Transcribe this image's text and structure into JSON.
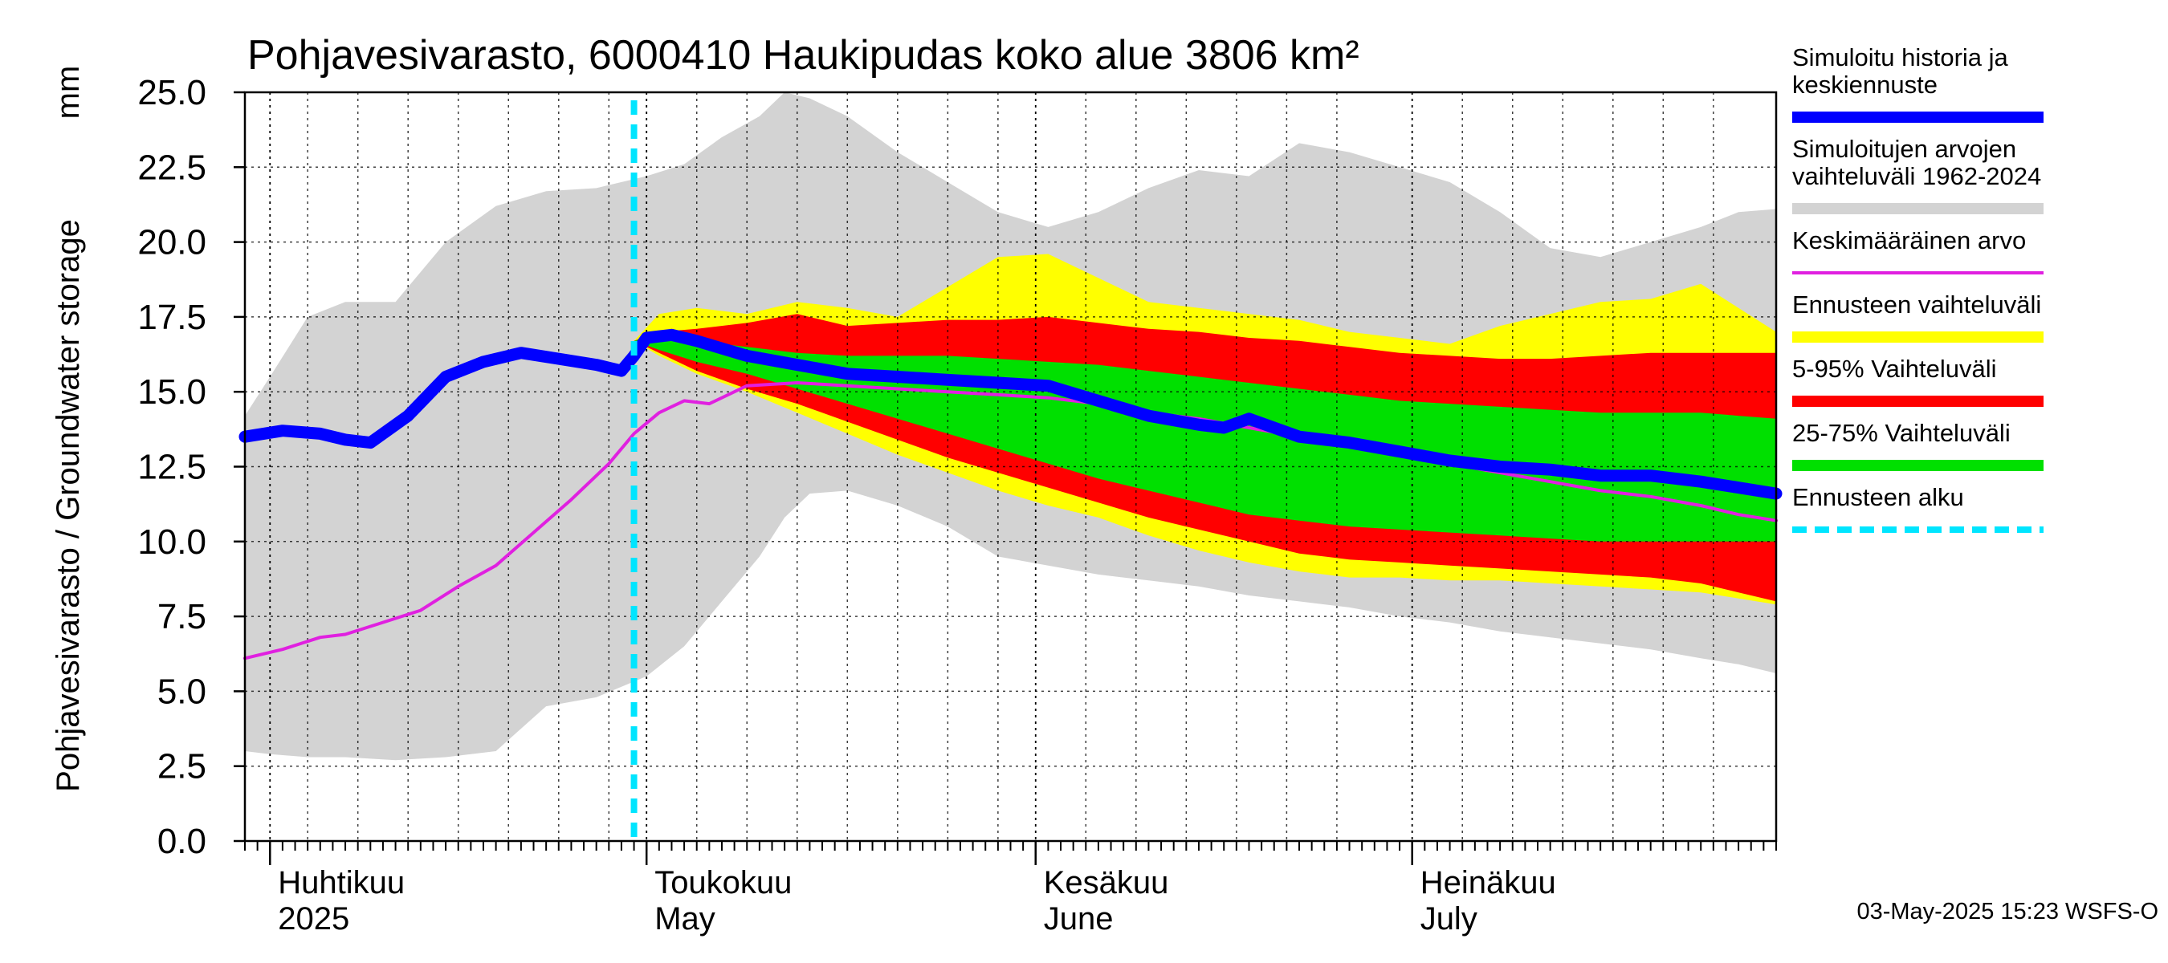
{
  "chart_data": {
    "type": "area",
    "title": "Pohjavesivarasto, 6000410 Haukipudas koko alue 3806 km²",
    "ylabel": "Pohjavesivarasto / Groundwater storage",
    "yunit": "mm",
    "ylim": [
      0,
      25
    ],
    "yticks": [
      "0.0",
      "2.5",
      "5.0",
      "7.5",
      "10.0",
      "12.5",
      "15.0",
      "17.5",
      "20.0",
      "22.5",
      "25.0"
    ],
    "xlim": [
      0,
      122
    ],
    "x_unit": "days since 2025-03-30",
    "month_labels": [
      {
        "fi": "Huhtikuu",
        "en": "2025",
        "day": 2
      },
      {
        "fi": "Toukokuu",
        "en": "May",
        "day": 32
      },
      {
        "fi": "Kesäkuu",
        "en": "June",
        "day": 63
      },
      {
        "fi": "Heinäkuu",
        "en": "July",
        "day": 93
      }
    ],
    "month_boundaries": [
      2,
      32,
      63,
      93
    ],
    "forecast_start_day": 31,
    "footer": "03-May-2025 15:23 WSFS-O",
    "legend": [
      {
        "label": "Simuloitu historia ja keskiennuste",
        "lines": [
          "Simuloitu historia ja",
          "keskiennuste"
        ],
        "color": "#0000ff"
      },
      {
        "label": "Simuloitujen arvojen vaihteluväli 1962-2024",
        "lines": [
          "Simuloitujen arvojen",
          "vaihteluväli 1962-2024"
        ],
        "color": "#d3d3d3"
      },
      {
        "label": "Keskimääräinen arvo",
        "lines": [
          "Keskimääräinen arvo"
        ],
        "color": "#e020e0"
      },
      {
        "label": "Ennusteen vaihteluväli",
        "lines": [
          "Ennusteen vaihteluväli"
        ],
        "color": "#ffff00"
      },
      {
        "label": "5-95% Vaihteluväli",
        "lines": [
          "5-95% Vaihteluväli"
        ],
        "color": "#ff0000"
      },
      {
        "label": "25-75% Vaihteluväli",
        "lines": [
          "25-75% Vaihteluväli"
        ],
        "color": "#00e000"
      },
      {
        "label": "Ennusteen alku",
        "lines": [
          "Ennusteen alku"
        ],
        "color": "#00e5ff"
      }
    ],
    "series": [
      {
        "name": "Simuloitujen arvojen vaihteluväli 1962-2024",
        "kind": "band",
        "color": "#d3d3d3",
        "x": [
          0,
          2,
          5,
          8,
          12,
          16,
          20,
          24,
          28,
          32,
          35,
          38,
          41,
          43,
          45,
          48,
          52,
          56,
          60,
          64,
          68,
          72,
          76,
          80,
          84,
          88,
          92,
          96,
          100,
          104,
          108,
          112,
          116,
          119,
          122
        ],
        "upper": [
          14.2,
          15.5,
          17.5,
          18.0,
          18.0,
          20.0,
          21.2,
          21.7,
          21.8,
          22.2,
          22.6,
          23.5,
          24.2,
          25.0,
          24.8,
          24.2,
          23.0,
          22.0,
          21.0,
          20.5,
          21.0,
          21.8,
          22.4,
          22.2,
          23.3,
          23.0,
          22.5,
          22.0,
          21.0,
          19.8,
          19.5,
          20.0,
          20.5,
          21.0,
          21.1
        ],
        "lower": [
          3.0,
          2.9,
          2.8,
          2.8,
          2.7,
          2.8,
          3.0,
          4.5,
          4.8,
          5.5,
          6.5,
          8.0,
          9.5,
          10.8,
          11.6,
          11.7,
          11.2,
          10.5,
          9.5,
          9.2,
          8.9,
          8.7,
          8.5,
          8.2,
          8.0,
          7.8,
          7.5,
          7.3,
          7.0,
          6.8,
          6.6,
          6.4,
          6.1,
          5.9,
          5.6
        ]
      },
      {
        "name": "Ennusteen vaihteluväli",
        "kind": "band",
        "color": "#ffff00",
        "x": [
          31,
          33,
          36,
          40,
          44,
          48,
          52,
          56,
          60,
          64,
          68,
          72,
          76,
          80,
          84,
          88,
          92,
          96,
          100,
          104,
          108,
          112,
          116,
          119,
          122
        ],
        "upper": [
          16.7,
          17.6,
          17.8,
          17.6,
          18.0,
          17.8,
          17.5,
          18.5,
          19.5,
          19.6,
          18.8,
          18.0,
          17.8,
          17.6,
          17.4,
          17.0,
          16.8,
          16.6,
          17.2,
          17.6,
          18.0,
          18.1,
          18.6,
          17.8,
          17.0
        ],
        "lower": [
          16.7,
          16.2,
          15.6,
          15.0,
          14.3,
          13.6,
          12.9,
          12.3,
          11.7,
          11.2,
          10.8,
          10.2,
          9.7,
          9.3,
          9.0,
          8.8,
          8.8,
          8.7,
          8.7,
          8.6,
          8.5,
          8.4,
          8.3,
          8.1,
          7.9
        ]
      },
      {
        "name": "5-95% Vaihteluväli",
        "kind": "band",
        "color": "#ff0000",
        "x": [
          31,
          33,
          36,
          40,
          44,
          48,
          52,
          56,
          60,
          64,
          68,
          72,
          76,
          80,
          84,
          88,
          92,
          96,
          100,
          104,
          108,
          112,
          116,
          119,
          122
        ],
        "upper": [
          16.7,
          17.0,
          17.1,
          17.3,
          17.6,
          17.2,
          17.3,
          17.4,
          17.4,
          17.5,
          17.3,
          17.1,
          17.0,
          16.8,
          16.7,
          16.5,
          16.3,
          16.2,
          16.1,
          16.1,
          16.2,
          16.3,
          16.3,
          16.3,
          16.3
        ],
        "lower": [
          16.7,
          16.3,
          15.7,
          15.1,
          14.6,
          14.0,
          13.4,
          12.8,
          12.3,
          11.8,
          11.3,
          10.8,
          10.4,
          10.0,
          9.6,
          9.4,
          9.3,
          9.2,
          9.1,
          9.0,
          8.9,
          8.8,
          8.6,
          8.3,
          8.0
        ]
      },
      {
        "name": "25-75% Vaihteluväli",
        "kind": "band",
        "color": "#00e000",
        "x": [
          31,
          33,
          36,
          40,
          44,
          48,
          52,
          56,
          60,
          64,
          68,
          72,
          76,
          80,
          84,
          88,
          92,
          96,
          100,
          104,
          108,
          112,
          116,
          119,
          122
        ],
        "upper": [
          16.7,
          16.9,
          16.7,
          16.5,
          16.3,
          16.2,
          16.2,
          16.2,
          16.1,
          16.0,
          15.9,
          15.7,
          15.5,
          15.3,
          15.1,
          14.9,
          14.7,
          14.6,
          14.5,
          14.4,
          14.3,
          14.3,
          14.3,
          14.2,
          14.1
        ],
        "lower": [
          16.7,
          16.4,
          16.0,
          15.6,
          15.1,
          14.6,
          14.1,
          13.6,
          13.1,
          12.6,
          12.1,
          11.7,
          11.3,
          10.9,
          10.7,
          10.5,
          10.4,
          10.3,
          10.2,
          10.1,
          10.0,
          10.0,
          10.0,
          10.0,
          10.0
        ]
      },
      {
        "name": "Keskimääräinen arvo",
        "kind": "line",
        "color": "#e020e0",
        "x": [
          0,
          3,
          6,
          8,
          11,
          14,
          17,
          20,
          23,
          26,
          29,
          31,
          33,
          35,
          37,
          40,
          44,
          48,
          52,
          56,
          60,
          64,
          68,
          72,
          76,
          80,
          84,
          88,
          92,
          96,
          100,
          104,
          108,
          112,
          116,
          119,
          122
        ],
        "y": [
          6.1,
          6.4,
          6.8,
          6.9,
          7.3,
          7.7,
          8.5,
          9.2,
          10.3,
          11.4,
          12.6,
          13.6,
          14.3,
          14.7,
          14.6,
          15.2,
          15.3,
          15.2,
          15.1,
          15.0,
          14.9,
          14.8,
          14.6,
          14.3,
          14.1,
          13.8,
          13.5,
          13.2,
          12.9,
          12.6,
          12.3,
          12.0,
          11.7,
          11.5,
          11.2,
          10.9,
          10.7
        ]
      },
      {
        "name": "Simuloitu historia ja keskiennuste",
        "kind": "line",
        "color": "#0000ff",
        "x": [
          0,
          3,
          6,
          8,
          10,
          13,
          16,
          19,
          22,
          25,
          28,
          30,
          31,
          32,
          34,
          36,
          40,
          44,
          48,
          52,
          56,
          60,
          64,
          68,
          72,
          76,
          78,
          80,
          84,
          88,
          92,
          96,
          100,
          104,
          108,
          112,
          116,
          119,
          122
        ],
        "y": [
          13.5,
          13.7,
          13.6,
          13.4,
          13.3,
          14.2,
          15.5,
          16.0,
          16.3,
          16.1,
          15.9,
          15.7,
          16.2,
          16.8,
          16.9,
          16.7,
          16.2,
          15.9,
          15.6,
          15.5,
          15.4,
          15.3,
          15.2,
          14.7,
          14.2,
          13.9,
          13.8,
          14.1,
          13.5,
          13.3,
          13.0,
          12.7,
          12.5,
          12.4,
          12.2,
          12.2,
          12.0,
          11.8,
          11.6
        ]
      }
    ]
  }
}
